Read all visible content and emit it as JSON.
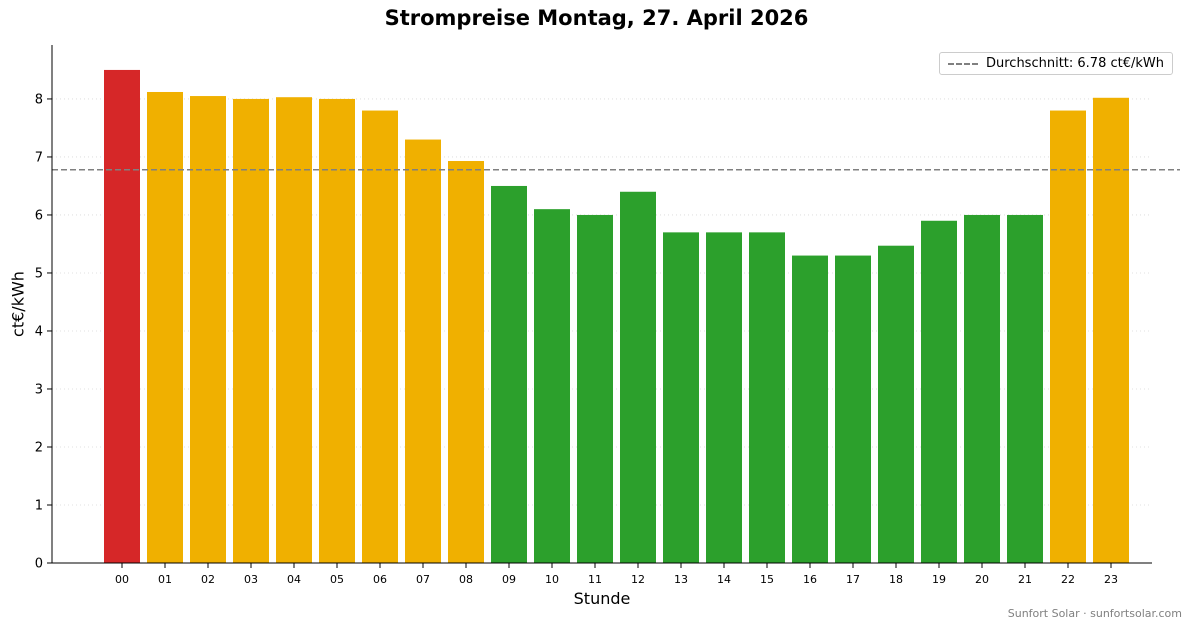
{
  "chart_data": {
    "type": "bar",
    "title": "Strompreise Montag, 27. April 2026",
    "xlabel": "Stunde",
    "ylabel": "ct€/kWh",
    "categories": [
      "00",
      "01",
      "02",
      "03",
      "04",
      "05",
      "06",
      "07",
      "08",
      "09",
      "10",
      "11",
      "12",
      "13",
      "14",
      "15",
      "16",
      "17",
      "18",
      "19",
      "20",
      "21",
      "22",
      "23"
    ],
    "values": [
      8.5,
      8.12,
      8.05,
      8.0,
      8.03,
      8.0,
      7.8,
      7.3,
      6.93,
      6.5,
      6.1,
      6.0,
      6.4,
      5.7,
      5.7,
      5.7,
      5.3,
      5.3,
      5.47,
      5.9,
      6.0,
      6.0,
      7.8,
      8.02
    ],
    "bar_colors": [
      "#d62728",
      "#f0b000",
      "#f0b000",
      "#f0b000",
      "#f0b000",
      "#f0b000",
      "#f0b000",
      "#f0b000",
      "#f0b000",
      "#2ca02c",
      "#2ca02c",
      "#2ca02c",
      "#2ca02c",
      "#2ca02c",
      "#2ca02c",
      "#2ca02c",
      "#2ca02c",
      "#2ca02c",
      "#2ca02c",
      "#2ca02c",
      "#2ca02c",
      "#2ca02c",
      "#f0b000",
      "#f0b000"
    ],
    "yticks": [
      0,
      1,
      2,
      3,
      4,
      5,
      6,
      7,
      8
    ],
    "ylim": [
      0,
      8.93
    ],
    "grid": "horizontal-dotted",
    "average": {
      "value": 6.78,
      "label": "Durchschnitt: 6.78 ct€/kWh",
      "color": "#808080"
    },
    "legend_position": "top-right"
  },
  "footer": {
    "credit": "Sunfort Solar · sunfortsolar.com"
  }
}
